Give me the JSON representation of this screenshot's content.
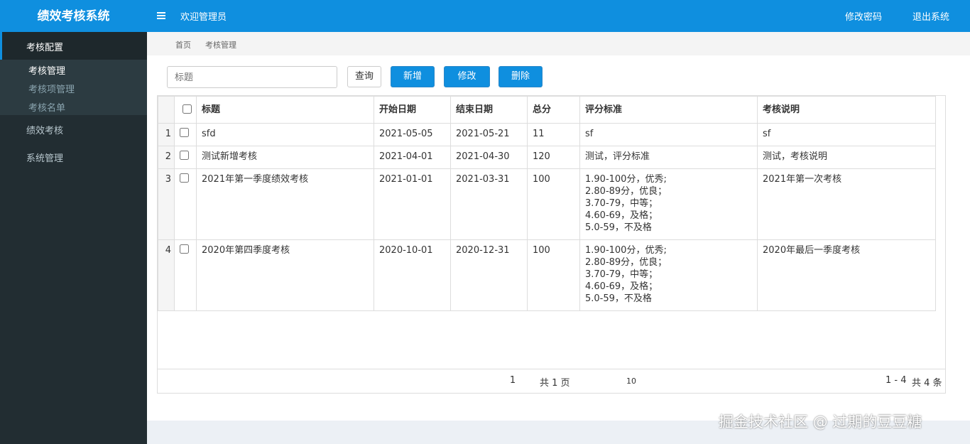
{
  "header": {
    "title": "绩效考核系统",
    "welcome": "欢迎管理员",
    "change_password": "修改密码",
    "logout": "退出系统"
  },
  "sidebar": {
    "groups": [
      {
        "label": "考核配置",
        "items": [
          "考核管理",
          "考核项管理",
          "考核名单"
        ]
      },
      {
        "label": "绩效考核"
      },
      {
        "label": "系统管理"
      }
    ]
  },
  "breadcrumb": [
    "首页",
    "考核管理"
  ],
  "toolbar": {
    "search_placeholder": "标题",
    "buttons": [
      "查询",
      "新增",
      "修改",
      "删除"
    ]
  },
  "table": {
    "columns": [
      "标题",
      "开始日期",
      "结束日期",
      "总分",
      "评分标准",
      "考核说明"
    ],
    "rows": [
      [
        "1",
        "sfd",
        "2021-05-05",
        "2021-05-21",
        "11",
        "sf",
        "sf"
      ],
      [
        "2",
        "测试新增考核",
        "2021-04-01",
        "2021-04-30",
        "120",
        "测试，评分标准",
        "测试，考核说明"
      ],
      [
        "3",
        "2021年第一季度绩效考核",
        "2021-01-01",
        "2021-03-31",
        "100",
        "1.90-100分，优秀;\n2.80-89分，优良；\n3.70-79，中等；\n4.60-69，及格；\n5.0-59，不及格",
        "2021年第一次考核"
      ],
      [
        "4",
        "2020年第四季度考核",
        "2020-10-01",
        "2020-12-31",
        "100",
        "1.90-100分，优秀;\n2.80-89分，优良；\n3.70-79，中等；\n4.60-69，及格；\n5.0-59，不及格",
        "2020年最后一季度考核"
      ]
    ]
  },
  "pagination": {
    "page": "1",
    "total_pages": "共 1 页",
    "page_size": "10",
    "range": "1 - 4",
    "total": "共 4 条"
  },
  "watermark": "掘金技术社区 @ 过期的豆豆糖"
}
